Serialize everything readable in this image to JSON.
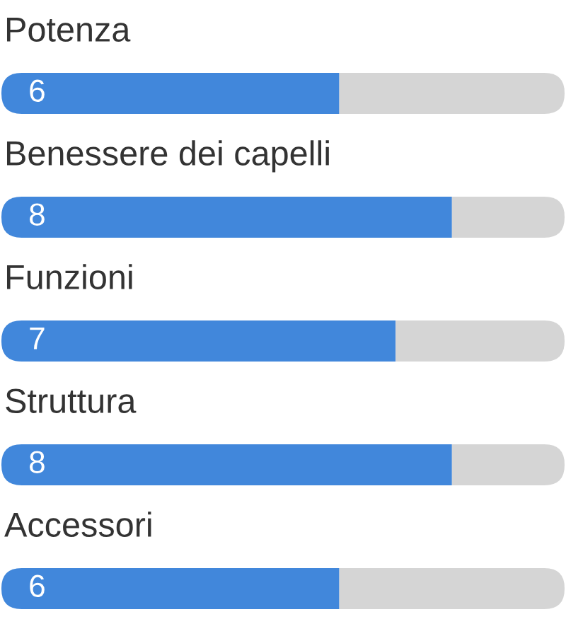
{
  "chart_data": {
    "type": "bar",
    "orientation": "horizontal",
    "stacked": true,
    "categories": [
      "Potenza",
      "Benessere dei capelli",
      "Funzioni",
      "Struttura",
      "Accessori"
    ],
    "series": [
      {
        "color": "#4187db",
        "values": [
          6,
          8,
          7,
          8,
          6
        ],
        "value_labels": [
          "6",
          "8",
          "7",
          "8",
          "6"
        ]
      },
      {
        "color": "#d5d5d5",
        "values": [
          4,
          2,
          3,
          2,
          4
        ]
      }
    ],
    "xlim": [
      0,
      10
    ],
    "tick_labels": false
  }
}
